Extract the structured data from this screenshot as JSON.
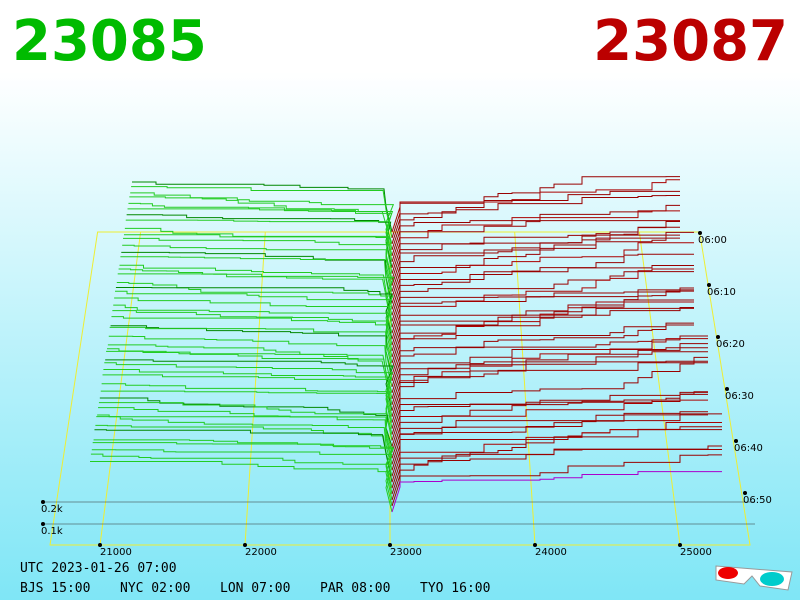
{
  "bid_price": "23085",
  "ask_price": "23087",
  "price_axis": [
    "21000",
    "22000",
    "23000",
    "24000",
    "25000"
  ],
  "time_axis": [
    "06:00",
    "06:10",
    "06:20",
    "06:30",
    "06:40",
    "06:50"
  ],
  "size_axis": [
    "0.2k",
    "0.1k"
  ],
  "clock": {
    "utc": "UTC 2023-01-26 07:00",
    "cities": [
      "BJS 15:00",
      "NYC 02:00",
      "LON 07:00",
      "PAR 08:00",
      "TYO 16:00"
    ]
  }
}
